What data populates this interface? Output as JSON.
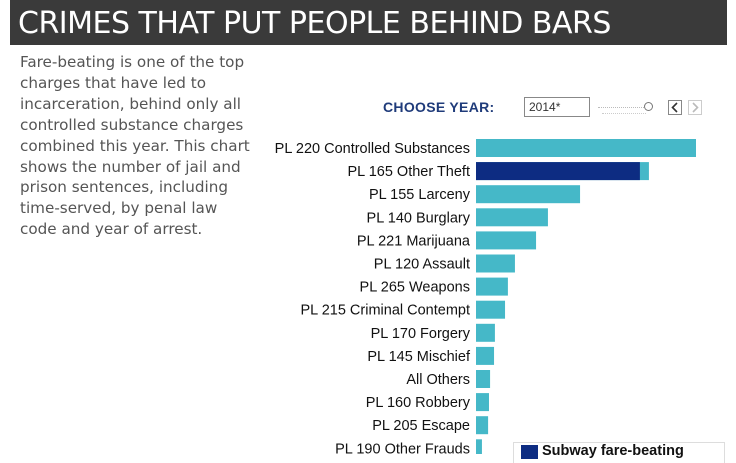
{
  "header": {
    "title": "CRIMES THAT PUT PEOPLE BEHIND BARS"
  },
  "description": "Fare-beating is one of the top charges that have led to incarceration, behind only all controlled substance charges combined this year. This chart shows the number of jail and prison sentences, including time-served, by penal law code and year of arrest.",
  "controls": {
    "choose_year_label": "CHOOSE YEAR:",
    "year_value": "2014*",
    "prev_icon": "chevron-left-icon",
    "next_icon": "chevron-right-icon"
  },
  "legend": {
    "label": "Subway fare-beating",
    "color": "#0d2c82"
  },
  "colors": {
    "bar": "#45b8c8",
    "highlight": "#0d2c82"
  },
  "chart_data": {
    "type": "bar",
    "orientation": "horizontal",
    "categories": [
      "PL 220 Controlled Substances",
      "PL 165 Other Theft",
      "PL 155 Larceny",
      "PL 140 Burglary",
      "PL 221 Marijuana",
      "PL 120 Assault",
      "PL 265 Weapons",
      "PL 215 Criminal Contempt",
      "PL 170 Forgery",
      "PL 145 Mischief",
      "All Others",
      "PL 160 Robbery",
      "PL 205 Escape",
      "PL 190 Other Frauds"
    ],
    "values": [
      100,
      78.6,
      47.3,
      32.7,
      27.3,
      17.7,
      14.5,
      13.2,
      8.6,
      8.2,
      6.4,
      5.9,
      5.5,
      2.7
    ],
    "highlight_series": {
      "name": "Subway fare-beating",
      "category": "PL 165 Other Theft",
      "value": 74.5
    }
  }
}
